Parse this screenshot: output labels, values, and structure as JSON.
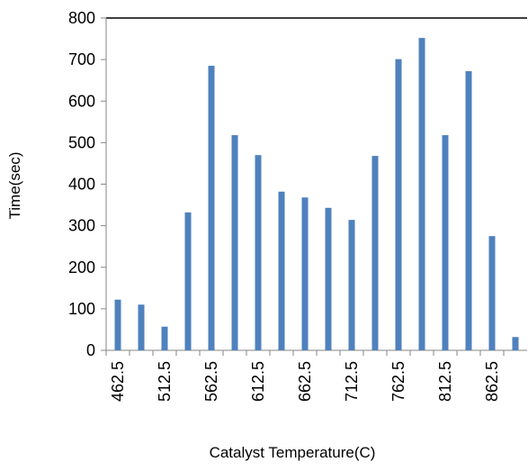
{
  "chart_data": {
    "type": "bar",
    "title": "",
    "xlabel": "Catalyst Temperature(C)",
    "ylabel": "Time(sec)",
    "ylim": [
      0,
      800
    ],
    "yticks": [
      "0",
      "100",
      "200",
      "300",
      "400",
      "500",
      "600",
      "700",
      "800"
    ],
    "categories": [
      "462.5",
      "487.5",
      "512.5",
      "537.5",
      "562.5",
      "587.5",
      "612.5",
      "637.5",
      "662.5",
      "687.5",
      "712.5",
      "737.5",
      "762.5",
      "787.5",
      "812.5",
      "837.5",
      "862.5",
      "887.5"
    ],
    "category_labels_shown": [
      "462.5",
      "",
      "512.5",
      "",
      "562.5",
      "",
      "612.5",
      "",
      "662.5",
      "",
      "712.5",
      "",
      "762.5",
      "",
      "812.5",
      "",
      "862.5",
      ""
    ],
    "values": [
      122,
      110,
      57,
      332,
      685,
      518,
      470,
      382,
      368,
      343,
      314,
      468,
      701,
      752,
      518,
      672,
      275,
      32
    ],
    "bar_color": "#4F81BD",
    "grid": false,
    "legend": "none"
  }
}
